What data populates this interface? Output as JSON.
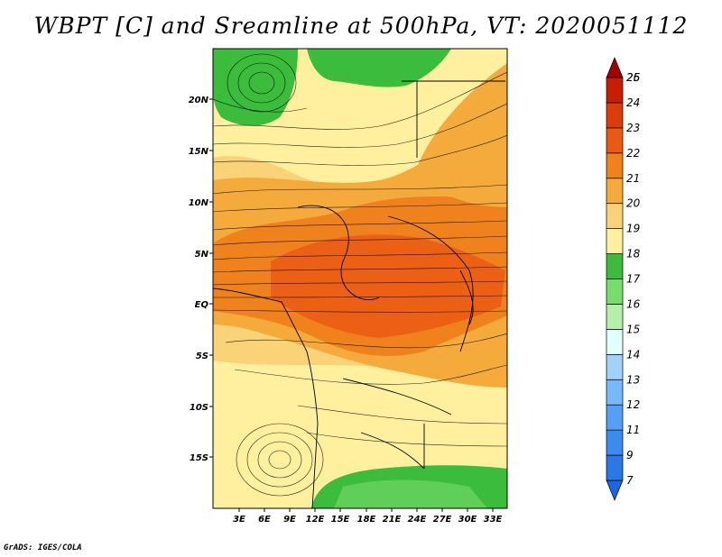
{
  "title": "WBPT [C] and Sreamline at 500hPa, VT: 2020051112",
  "footer": "GrADS: IGES/COLA",
  "map": {
    "lon_labels": [
      "3E",
      "6E",
      "9E",
      "12E",
      "15E",
      "18E",
      "21E",
      "24E",
      "27E",
      "30E",
      "33E"
    ],
    "lat_labels": [
      "20N",
      "15N",
      "10N",
      "5N",
      "EQ",
      "5S",
      "10S",
      "15S"
    ]
  },
  "colorbar": {
    "levels": [
      "7",
      "9",
      "11",
      "12",
      "13",
      "14",
      "15",
      "16",
      "17",
      "18",
      "19",
      "20",
      "21",
      "22",
      "23",
      "24",
      "25",
      "26"
    ],
    "colors": [
      "#1e64dc",
      "#2878e6",
      "#3c8cf0",
      "#55a0f5",
      "#78b9fa",
      "#a0d2fa",
      "#e1ffff",
      "#b4f0aa",
      "#78dc6e",
      "#3cbc3c",
      "#fff0a0",
      "#fad278",
      "#f5aa3c",
      "#f0821e",
      "#eb5a14",
      "#dc3c0a",
      "#c81e00",
      "#a00000"
    ]
  }
}
